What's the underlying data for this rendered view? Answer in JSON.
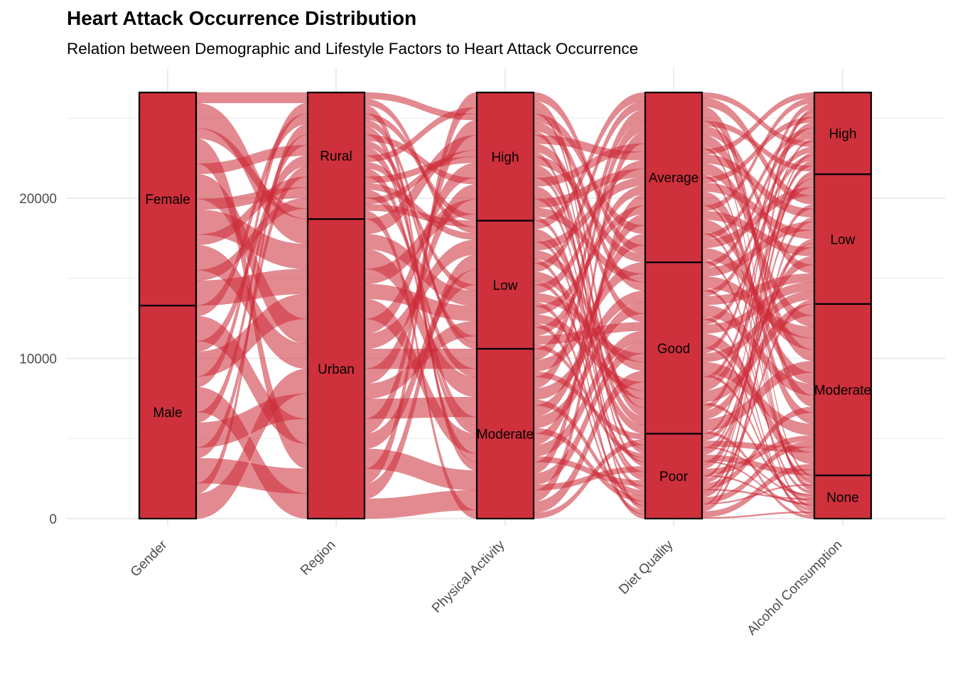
{
  "chart_data": {
    "type": "alluvial",
    "title": "Heart Attack Occurrence Distribution",
    "subtitle": "Relation between Demographic and Lifestyle Factors to Heart Attack Occurrence",
    "xlabel": "",
    "ylabel": "",
    "ylim": [
      0,
      27500
    ],
    "y_ticks": [
      0,
      10000,
      20000
    ],
    "grid": true,
    "fill_color": "#cc2936",
    "axes": [
      {
        "name": "Gender",
        "strata": [
          {
            "label": "Male",
            "value": 13300
          },
          {
            "label": "Female",
            "value": 13300
          }
        ]
      },
      {
        "name": "Region",
        "strata": [
          {
            "label": "Urban",
            "value": 18700
          },
          {
            "label": "Rural",
            "value": 7900
          }
        ]
      },
      {
        "name": "Physical Activity",
        "strata": [
          {
            "label": "Moderate",
            "value": 10600
          },
          {
            "label": "Low",
            "value": 8000
          },
          {
            "label": "High",
            "value": 8000
          }
        ]
      },
      {
        "name": "Diet Quality",
        "strata": [
          {
            "label": "Poor",
            "value": 5300
          },
          {
            "label": "Good",
            "value": 10700
          },
          {
            "label": "Average",
            "value": 10600
          }
        ]
      },
      {
        "name": "Alcohol Consumption",
        "strata": [
          {
            "label": "None",
            "value": 2700
          },
          {
            "label": "Moderate",
            "value": 10700
          },
          {
            "label": "Low",
            "value": 8100
          },
          {
            "label": "High",
            "value": 5100
          }
        ]
      }
    ]
  }
}
